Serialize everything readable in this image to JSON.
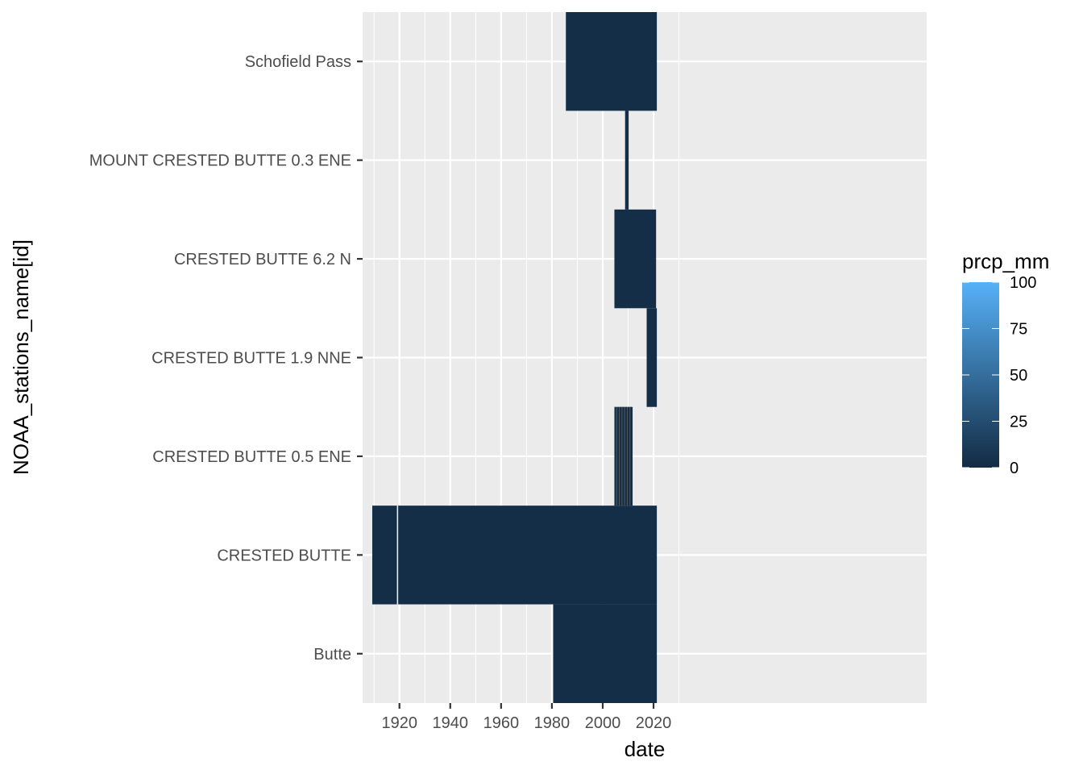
{
  "chart_data": {
    "type": "heatmap",
    "title": "",
    "xlabel": "date",
    "ylabel": "NOAA_stations_name[id]",
    "xlim": [
      1905.5,
      2127.5
    ],
    "x_ticks": [
      "1920",
      "1940",
      "1960",
      "1980",
      "2000",
      "2020"
    ],
    "categories": [
      "Butte",
      "CRESTED BUTTE",
      "CRESTED BUTTE 0.5 ENE",
      "CRESTED BUTTE 1.9 NNE",
      "CRESTED BUTTE 6.2 N",
      "MOUNT CRESTED BUTTE 0.3 ENE",
      "Schofield Pass"
    ],
    "grid": true,
    "color_scale": {
      "name": "prcp_mm",
      "low_color": "#132B43",
      "high_color": "#56B1F7",
      "range": [
        0,
        100
      ],
      "breaks": [
        "0",
        "25",
        "50",
        "75",
        "100"
      ],
      "legend_position": "right"
    },
    "coverage": [
      {
        "station": "Butte",
        "start": 1980.5,
        "end": 2021.3,
        "typical_prcp_mm": 2
      },
      {
        "station": "CRESTED BUTTE",
        "start": 1909.3,
        "end": 2021.3,
        "typical_prcp_mm": 2,
        "gaps": [
          [
            1919.0,
            1919.5
          ]
        ]
      },
      {
        "station": "CRESTED BUTTE 0.5 ENE",
        "start": 2004.6,
        "end": 2011.5,
        "typical_prcp_mm": 2,
        "sparse": true
      },
      {
        "station": "CRESTED BUTTE 1.9 NNE",
        "start": 2017.3,
        "end": 2021.3,
        "typical_prcp_mm": 2
      },
      {
        "station": "CRESTED BUTTE 6.2 N",
        "start": 2004.6,
        "end": 2021.0,
        "typical_prcp_mm": 2
      },
      {
        "station": "MOUNT CRESTED BUTTE 0.3 ENE",
        "start": 2008.8,
        "end": 2010.2,
        "typical_prcp_mm": 2
      },
      {
        "station": "Schofield Pass",
        "start": 1985.5,
        "end": 2021.3,
        "typical_prcp_mm": 2
      }
    ]
  }
}
